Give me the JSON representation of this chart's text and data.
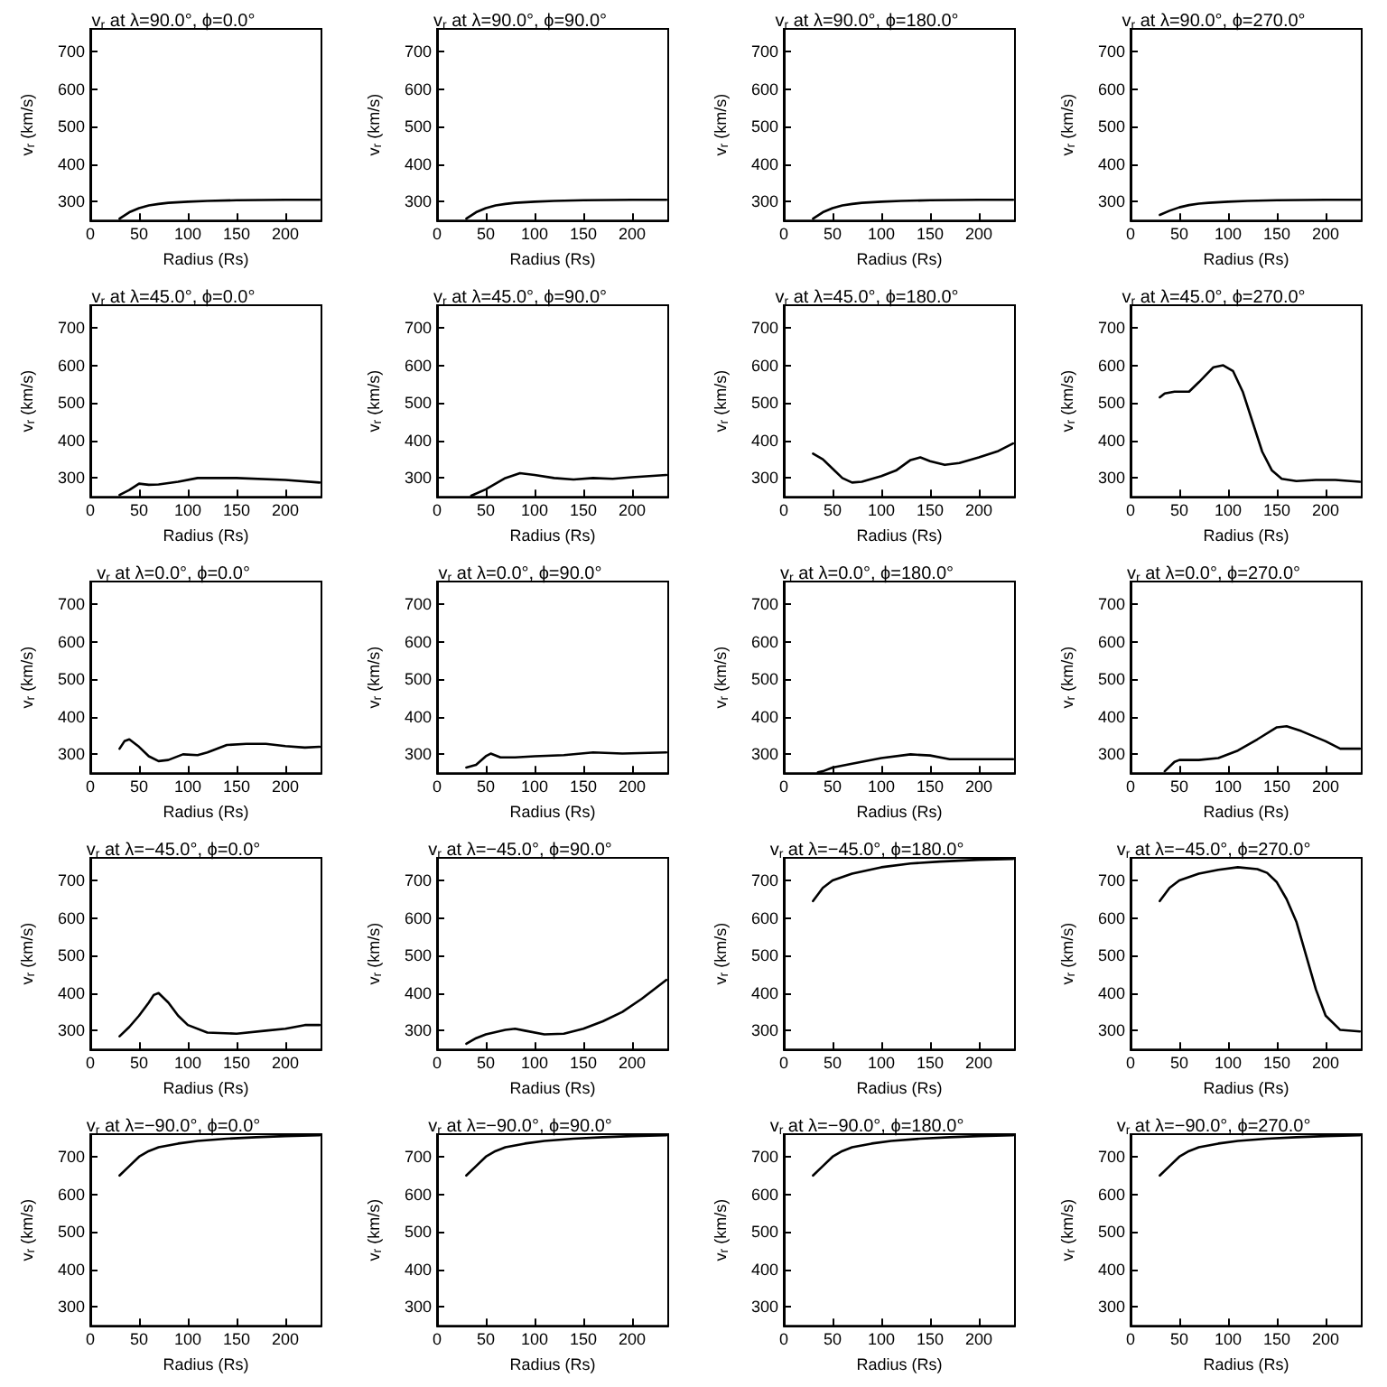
{
  "chart_data": [
    {
      "type": "line",
      "title": "v$_{r}$ at λ=90.0°, ϕ=0.0°",
      "xlabel": "Radius (Rs)",
      "ylabel": "v$_{r}$ (km/s)",
      "color": "#000000",
      "marker": "none",
      "xlim": [
        0,
        237
      ],
      "ylim": [
        250,
        760
      ],
      "xticks": [
        0,
        50,
        100,
        150,
        200
      ],
      "yticks": [
        300,
        400,
        500,
        600,
        700
      ],
      "x": [
        30,
        40,
        50,
        60,
        70,
        80,
        100,
        120,
        150,
        200,
        235
      ],
      "values": [
        255,
        272,
        283,
        290,
        294,
        297,
        300,
        302,
        304,
        305,
        305
      ]
    },
    {
      "type": "line",
      "title": "v$_{r}$ at λ=90.0°, ϕ=90.0°",
      "xlabel": "Radius (Rs)",
      "ylabel": "v$_{r}$ (km/s)",
      "color": "#000000",
      "marker": "none",
      "xlim": [
        0,
        237
      ],
      "ylim": [
        250,
        760
      ],
      "xticks": [
        0,
        50,
        100,
        150,
        200
      ],
      "yticks": [
        300,
        400,
        500,
        600,
        700
      ],
      "x": [
        30,
        40,
        50,
        60,
        70,
        80,
        100,
        120,
        150,
        200,
        235
      ],
      "values": [
        255,
        272,
        283,
        290,
        294,
        297,
        300,
        302,
        304,
        305,
        305
      ]
    },
    {
      "type": "line",
      "title": "v$_{r}$ at λ=90.0°, ϕ=180.0°",
      "xlabel": "Radius (Rs)",
      "ylabel": "v$_{r}$ (km/s)",
      "color": "#000000",
      "marker": "none",
      "xlim": [
        0,
        237
      ],
      "ylim": [
        250,
        760
      ],
      "xticks": [
        0,
        50,
        100,
        150,
        200
      ],
      "yticks": [
        300,
        400,
        500,
        600,
        700
      ],
      "x": [
        30,
        40,
        50,
        60,
        70,
        80,
        100,
        120,
        150,
        200,
        235
      ],
      "values": [
        255,
        272,
        283,
        290,
        294,
        297,
        300,
        302,
        304,
        305,
        305
      ]
    },
    {
      "type": "line",
      "title": "v$_{r}$ at λ=90.0°, ϕ=270.0°",
      "xlabel": "Radius (Rs)",
      "ylabel": "v$_{r}$ (km/s)",
      "color": "#000000",
      "marker": "none",
      "xlim": [
        0,
        237
      ],
      "ylim": [
        250,
        760
      ],
      "xticks": [
        0,
        50,
        100,
        150,
        200
      ],
      "yticks": [
        300,
        400,
        500,
        600,
        700
      ],
      "x": [
        30,
        40,
        50,
        60,
        70,
        80,
        100,
        120,
        150,
        200,
        235
      ],
      "values": [
        265,
        276,
        285,
        291,
        295,
        297,
        300,
        302,
        304,
        305,
        305
      ]
    },
    {
      "type": "line",
      "title": "v$_{r}$ at λ=45.0°, ϕ=0.0°",
      "xlabel": "Radius (Rs)",
      "ylabel": "v$_{r}$ (km/s)",
      "color": "#000000",
      "marker": "none",
      "xlim": [
        0,
        237
      ],
      "ylim": [
        250,
        760
      ],
      "xticks": [
        0,
        50,
        100,
        150,
        200
      ],
      "yticks": [
        300,
        400,
        500,
        600,
        700
      ],
      "x": [
        30,
        40,
        50,
        60,
        70,
        90,
        110,
        150,
        200,
        235
      ],
      "values": [
        255,
        268,
        285,
        282,
        283,
        290,
        300,
        300,
        295,
        288
      ]
    },
    {
      "type": "line",
      "title": "v$_{r}$ at λ=45.0°, ϕ=90.0°",
      "xlabel": "Radius (Rs)",
      "ylabel": "v$_{r}$ (km/s)",
      "color": "#000000",
      "marker": "none",
      "xlim": [
        0,
        237
      ],
      "ylim": [
        250,
        760
      ],
      "xticks": [
        0,
        50,
        100,
        150,
        200
      ],
      "yticks": [
        300,
        400,
        500,
        600,
        700
      ],
      "x": [
        35,
        50,
        70,
        85,
        100,
        120,
        140,
        160,
        180,
        200,
        235
      ],
      "values": [
        253,
        270,
        300,
        313,
        308,
        300,
        296,
        300,
        298,
        302,
        308
      ]
    },
    {
      "type": "line",
      "title": "v$_{r}$ at λ=45.0°, ϕ=180.0°",
      "xlabel": "Radius (Rs)",
      "ylabel": "v$_{r}$ (km/s)",
      "color": "#000000",
      "marker": "none",
      "xlim": [
        0,
        237
      ],
      "ylim": [
        250,
        760
      ],
      "xticks": [
        0,
        50,
        100,
        150,
        200
      ],
      "yticks": [
        300,
        400,
        500,
        600,
        700
      ],
      "x": [
        30,
        40,
        50,
        60,
        70,
        80,
        100,
        115,
        130,
        140,
        150,
        165,
        180,
        200,
        220,
        235
      ],
      "values": [
        365,
        350,
        325,
        300,
        288,
        290,
        305,
        320,
        348,
        355,
        345,
        335,
        340,
        355,
        372,
        392
      ]
    },
    {
      "type": "line",
      "title": "v$_{r}$ at λ=45.0°, ϕ=270.0°",
      "xlabel": "Radius (Rs)",
      "ylabel": "v$_{r}$ (km/s)",
      "color": "#000000",
      "marker": "none",
      "xlim": [
        0,
        237
      ],
      "ylim": [
        250,
        760
      ],
      "xticks": [
        0,
        50,
        100,
        150,
        200
      ],
      "yticks": [
        300,
        400,
        500,
        600,
        700
      ],
      "x": [
        30,
        35,
        45,
        60,
        70,
        85,
        95,
        105,
        115,
        125,
        135,
        145,
        155,
        170,
        190,
        210,
        235
      ],
      "values": [
        515,
        525,
        530,
        530,
        555,
        595,
        600,
        585,
        530,
        450,
        370,
        320,
        298,
        292,
        295,
        295,
        290
      ]
    },
    {
      "type": "line",
      "title": "v$_{r}$ at λ=0.0°, ϕ=0.0°",
      "xlabel": "Radius (Rs)",
      "ylabel": "v$_{r}$ (km/s)",
      "color": "#000000",
      "marker": "none",
      "xlim": [
        0,
        237
      ],
      "ylim": [
        250,
        760
      ],
      "xticks": [
        0,
        50,
        100,
        150,
        200
      ],
      "yticks": [
        300,
        400,
        500,
        600,
        700
      ],
      "x": [
        30,
        35,
        40,
        50,
        60,
        70,
        80,
        95,
        110,
        120,
        140,
        160,
        180,
        200,
        220,
        235
      ],
      "values": [
        315,
        335,
        340,
        320,
        295,
        282,
        285,
        300,
        298,
        305,
        325,
        328,
        328,
        322,
        318,
        320
      ]
    },
    {
      "type": "line",
      "title": "v$_{r}$ at λ=0.0°, ϕ=90.0°",
      "xlabel": "Radius (Rs)",
      "ylabel": "v$_{r}$ (km/s)",
      "color": "#000000",
      "marker": "none",
      "xlim": [
        0,
        237
      ],
      "ylim": [
        250,
        760
      ],
      "xticks": [
        0,
        50,
        100,
        150,
        200
      ],
      "yticks": [
        300,
        400,
        500,
        600,
        700
      ],
      "x": [
        30,
        40,
        50,
        55,
        65,
        80,
        100,
        130,
        160,
        190,
        235
      ],
      "values": [
        265,
        272,
        295,
        302,
        292,
        292,
        295,
        298,
        305,
        302,
        305
      ]
    },
    {
      "type": "line",
      "title": "v$_{r}$ at λ=0.0°, ϕ=180.0°",
      "xlabel": "Radius (Rs)",
      "ylabel": "v$_{r}$ (km/s)",
      "color": "#000000",
      "marker": "none",
      "xlim": [
        0,
        237
      ],
      "ylim": [
        250,
        760
      ],
      "xticks": [
        0,
        50,
        100,
        150,
        200
      ],
      "yticks": [
        300,
        400,
        500,
        600,
        700
      ],
      "x": [
        35,
        40,
        50,
        70,
        100,
        130,
        150,
        170,
        235
      ],
      "values": [
        252,
        255,
        265,
        275,
        290,
        300,
        297,
        287,
        287
      ]
    },
    {
      "type": "line",
      "title": "v$_{r}$ at λ=0.0°, ϕ=270.0°",
      "xlabel": "Radius (Rs)",
      "ylabel": "v$_{r}$ (km/s)",
      "color": "#000000",
      "marker": "none",
      "xlim": [
        0,
        237
      ],
      "ylim": [
        250,
        760
      ],
      "xticks": [
        0,
        50,
        100,
        150,
        200
      ],
      "yticks": [
        300,
        400,
        500,
        600,
        700
      ],
      "x": [
        35,
        45,
        50,
        70,
        90,
        110,
        130,
        150,
        160,
        175,
        200,
        215,
        235
      ],
      "values": [
        255,
        280,
        285,
        285,
        290,
        310,
        340,
        372,
        375,
        362,
        335,
        315,
        315
      ]
    },
    {
      "type": "line",
      "title": "v$_{r}$ at λ=−45.0°, ϕ=0.0°",
      "xlabel": "Radius (Rs)",
      "ylabel": "v$_{r}$ (km/s)",
      "color": "#000000",
      "marker": "none",
      "xlim": [
        0,
        237
      ],
      "ylim": [
        250,
        760
      ],
      "xticks": [
        0,
        50,
        100,
        150,
        200
      ],
      "yticks": [
        300,
        400,
        500,
        600,
        700
      ],
      "x": [
        30,
        40,
        50,
        60,
        65,
        70,
        80,
        90,
        100,
        120,
        150,
        180,
        200,
        220,
        235
      ],
      "values": [
        285,
        310,
        340,
        375,
        395,
        400,
        375,
        340,
        315,
        295,
        292,
        300,
        305,
        315,
        315
      ]
    },
    {
      "type": "line",
      "title": "v$_{r}$ at λ=−45.0°, ϕ=90.0°",
      "xlabel": "Radius (Rs)",
      "ylabel": "v$_{r}$ (km/s)",
      "color": "#000000",
      "marker": "none",
      "xlim": [
        0,
        237
      ],
      "ylim": [
        250,
        760
      ],
      "xticks": [
        0,
        50,
        100,
        150,
        200
      ],
      "yticks": [
        300,
        400,
        500,
        600,
        700
      ],
      "x": [
        30,
        40,
        50,
        70,
        80,
        90,
        110,
        130,
        150,
        170,
        190,
        210,
        235
      ],
      "values": [
        265,
        280,
        290,
        302,
        305,
        300,
        290,
        292,
        305,
        325,
        350,
        385,
        435
      ]
    },
    {
      "type": "line",
      "title": "v$_{r}$ at λ=−45.0°, ϕ=180.0°",
      "xlabel": "Radius (Rs)",
      "ylabel": "v$_{r}$ (km/s)",
      "color": "#000000",
      "marker": "none",
      "xlim": [
        0,
        237
      ],
      "ylim": [
        250,
        760
      ],
      "xticks": [
        0,
        50,
        100,
        150,
        200
      ],
      "yticks": [
        300,
        400,
        500,
        600,
        700
      ],
      "x": [
        30,
        40,
        50,
        70,
        100,
        130,
        160,
        200,
        235
      ],
      "values": [
        645,
        680,
        700,
        718,
        735,
        745,
        750,
        755,
        757
      ]
    },
    {
      "type": "line",
      "title": "v$_{r}$ at λ=−45.0°, ϕ=270.0°",
      "xlabel": "Radius (Rs)",
      "ylabel": "v$_{r}$ (km/s)",
      "color": "#000000",
      "marker": "none",
      "xlim": [
        0,
        237
      ],
      "ylim": [
        250,
        760
      ],
      "xticks": [
        0,
        50,
        100,
        150,
        200
      ],
      "yticks": [
        300,
        400,
        500,
        600,
        700
      ],
      "x": [
        30,
        40,
        50,
        70,
        90,
        110,
        130,
        140,
        150,
        160,
        170,
        180,
        190,
        200,
        215,
        235
      ],
      "values": [
        645,
        680,
        700,
        718,
        728,
        735,
        730,
        720,
        695,
        650,
        590,
        500,
        410,
        340,
        302,
        298
      ]
    },
    {
      "type": "line",
      "title": "v$_{r}$ at λ=−90.0°, ϕ=0.0°",
      "xlabel": "Radius (Rs)",
      "ylabel": "v$_{r}$ (km/s)",
      "color": "#000000",
      "marker": "none",
      "xlim": [
        0,
        237
      ],
      "ylim": [
        250,
        760
      ],
      "xticks": [
        0,
        50,
        100,
        150,
        200
      ],
      "yticks": [
        300,
        400,
        500,
        600,
        700
      ],
      "x": [
        30,
        40,
        50,
        60,
        70,
        90,
        110,
        140,
        170,
        200,
        235
      ],
      "values": [
        650,
        675,
        700,
        715,
        725,
        735,
        742,
        748,
        752,
        755,
        757
      ]
    },
    {
      "type": "line",
      "title": "v$_{r}$ at λ=−90.0°, ϕ=90.0°",
      "xlabel": "Radius (Rs)",
      "ylabel": "v$_{r}$ (km/s)",
      "color": "#000000",
      "marker": "none",
      "xlim": [
        0,
        237
      ],
      "ylim": [
        250,
        760
      ],
      "xticks": [
        0,
        50,
        100,
        150,
        200
      ],
      "yticks": [
        300,
        400,
        500,
        600,
        700
      ],
      "x": [
        30,
        40,
        50,
        60,
        70,
        90,
        110,
        140,
        170,
        200,
        235
      ],
      "values": [
        650,
        675,
        700,
        715,
        725,
        735,
        742,
        748,
        752,
        755,
        757
      ]
    },
    {
      "type": "line",
      "title": "v$_{r}$ at λ=−90.0°, ϕ=180.0°",
      "xlabel": "Radius (Rs)",
      "ylabel": "v$_{r}$ (km/s)",
      "color": "#000000",
      "marker": "none",
      "xlim": [
        0,
        237
      ],
      "ylim": [
        250,
        760
      ],
      "xticks": [
        0,
        50,
        100,
        150,
        200
      ],
      "yticks": [
        300,
        400,
        500,
        600,
        700
      ],
      "x": [
        30,
        40,
        50,
        60,
        70,
        90,
        110,
        140,
        170,
        200,
        235
      ],
      "values": [
        650,
        675,
        700,
        715,
        725,
        735,
        742,
        748,
        752,
        755,
        757
      ]
    },
    {
      "type": "line",
      "title": "v$_{r}$ at λ=−90.0°, ϕ=270.0°",
      "xlabel": "Radius (Rs)",
      "ylabel": "v$_{r}$ (km/s)",
      "color": "#000000",
      "marker": "none",
      "xlim": [
        0,
        237
      ],
      "ylim": [
        250,
        760
      ],
      "xticks": [
        0,
        50,
        100,
        150,
        200
      ],
      "yticks": [
        300,
        400,
        500,
        600,
        700
      ],
      "x": [
        30,
        40,
        50,
        60,
        70,
        90,
        110,
        140,
        170,
        200,
        235
      ],
      "values": [
        650,
        675,
        700,
        715,
        725,
        735,
        742,
        748,
        752,
        755,
        757
      ]
    }
  ]
}
